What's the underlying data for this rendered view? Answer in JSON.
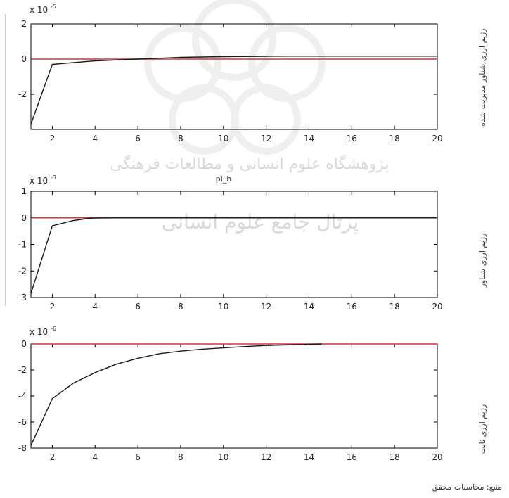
{
  "colors": {
    "response_line": "#1a1a1a",
    "zero_line": "#e03030",
    "axis": "#000000",
    "watermark": "#dcdcdc"
  },
  "watermark_text": [
    "پژوهشگاه علوم انسانی و مطالعات فرهنگی",
    "پرتال جامع علوم انسانی"
  ],
  "source_note": "منبع: محاسبات محقق",
  "chart_data": [
    {
      "type": "line",
      "title": "",
      "side_label": "رژیم ارزی شناور مدیریت شده",
      "exponent_label": "x 10",
      "exponent": "-5",
      "xlim": [
        1,
        20
      ],
      "ylim": [
        -4,
        2
      ],
      "xticks": [
        2,
        4,
        6,
        8,
        10,
        12,
        14,
        16,
        18,
        20
      ],
      "yticks": [
        2,
        0,
        -2
      ],
      "grid": false,
      "series": [
        {
          "x": [
            1,
            2,
            3,
            4,
            5,
            6,
            7,
            8,
            9,
            10,
            11,
            12,
            13,
            14,
            15,
            16,
            17,
            18,
            19,
            20
          ],
          "y": [
            -3.7,
            -0.3,
            -0.2,
            -0.1,
            -0.05,
            0.0,
            0.05,
            0.1,
            0.12,
            0.14,
            0.15,
            0.16,
            0.17,
            0.17,
            0.17,
            0.17,
            0.17,
            0.17,
            0.17,
            0.17
          ]
        }
      ],
      "reference_line": 0
    },
    {
      "type": "line",
      "title": "pi_h",
      "side_label": "رژیم ارزی شناور",
      "exponent_label": "x 10",
      "exponent": "-3",
      "xlim": [
        1,
        20
      ],
      "ylim": [
        -3,
        1
      ],
      "xticks": [
        2,
        4,
        6,
        8,
        10,
        12,
        14,
        16,
        18,
        20
      ],
      "yticks": [
        1,
        0,
        -1,
        -2,
        -3
      ],
      "grid": false,
      "series": [
        {
          "x": [
            1,
            2,
            3,
            3.7,
            4,
            5,
            6,
            7,
            8,
            9,
            10,
            11,
            12,
            13,
            14,
            15,
            16,
            17,
            18,
            19,
            20
          ],
          "y": [
            -2.85,
            -0.3,
            -0.1,
            -0.02,
            -0.01,
            0,
            0,
            0,
            0,
            0,
            0,
            0,
            0,
            0,
            0,
            0,
            0,
            0,
            0,
            0,
            0
          ]
        }
      ],
      "reference_line": 0
    },
    {
      "type": "line",
      "title": "",
      "side_label": "رژیم ارزی ثابت",
      "exponent_label": "x 10",
      "exponent": "-6",
      "xlim": [
        1,
        20
      ],
      "ylim": [
        -8,
        0
      ],
      "xticks": [
        2,
        4,
        6,
        8,
        10,
        12,
        14,
        16,
        18,
        20
      ],
      "yticks": [
        0,
        -2,
        -4,
        -6,
        -8
      ],
      "grid": false,
      "series": [
        {
          "x": [
            1,
            2,
            3,
            4,
            5,
            6,
            7,
            8,
            9,
            10,
            11,
            12,
            13,
            14,
            14.6
          ],
          "y": [
            -7.8,
            -4.2,
            -3.0,
            -2.2,
            -1.55,
            -1.1,
            -0.75,
            -0.55,
            -0.4,
            -0.3,
            -0.2,
            -0.12,
            -0.07,
            -0.03,
            0
          ]
        }
      ],
      "reference_line": 0
    }
  ]
}
